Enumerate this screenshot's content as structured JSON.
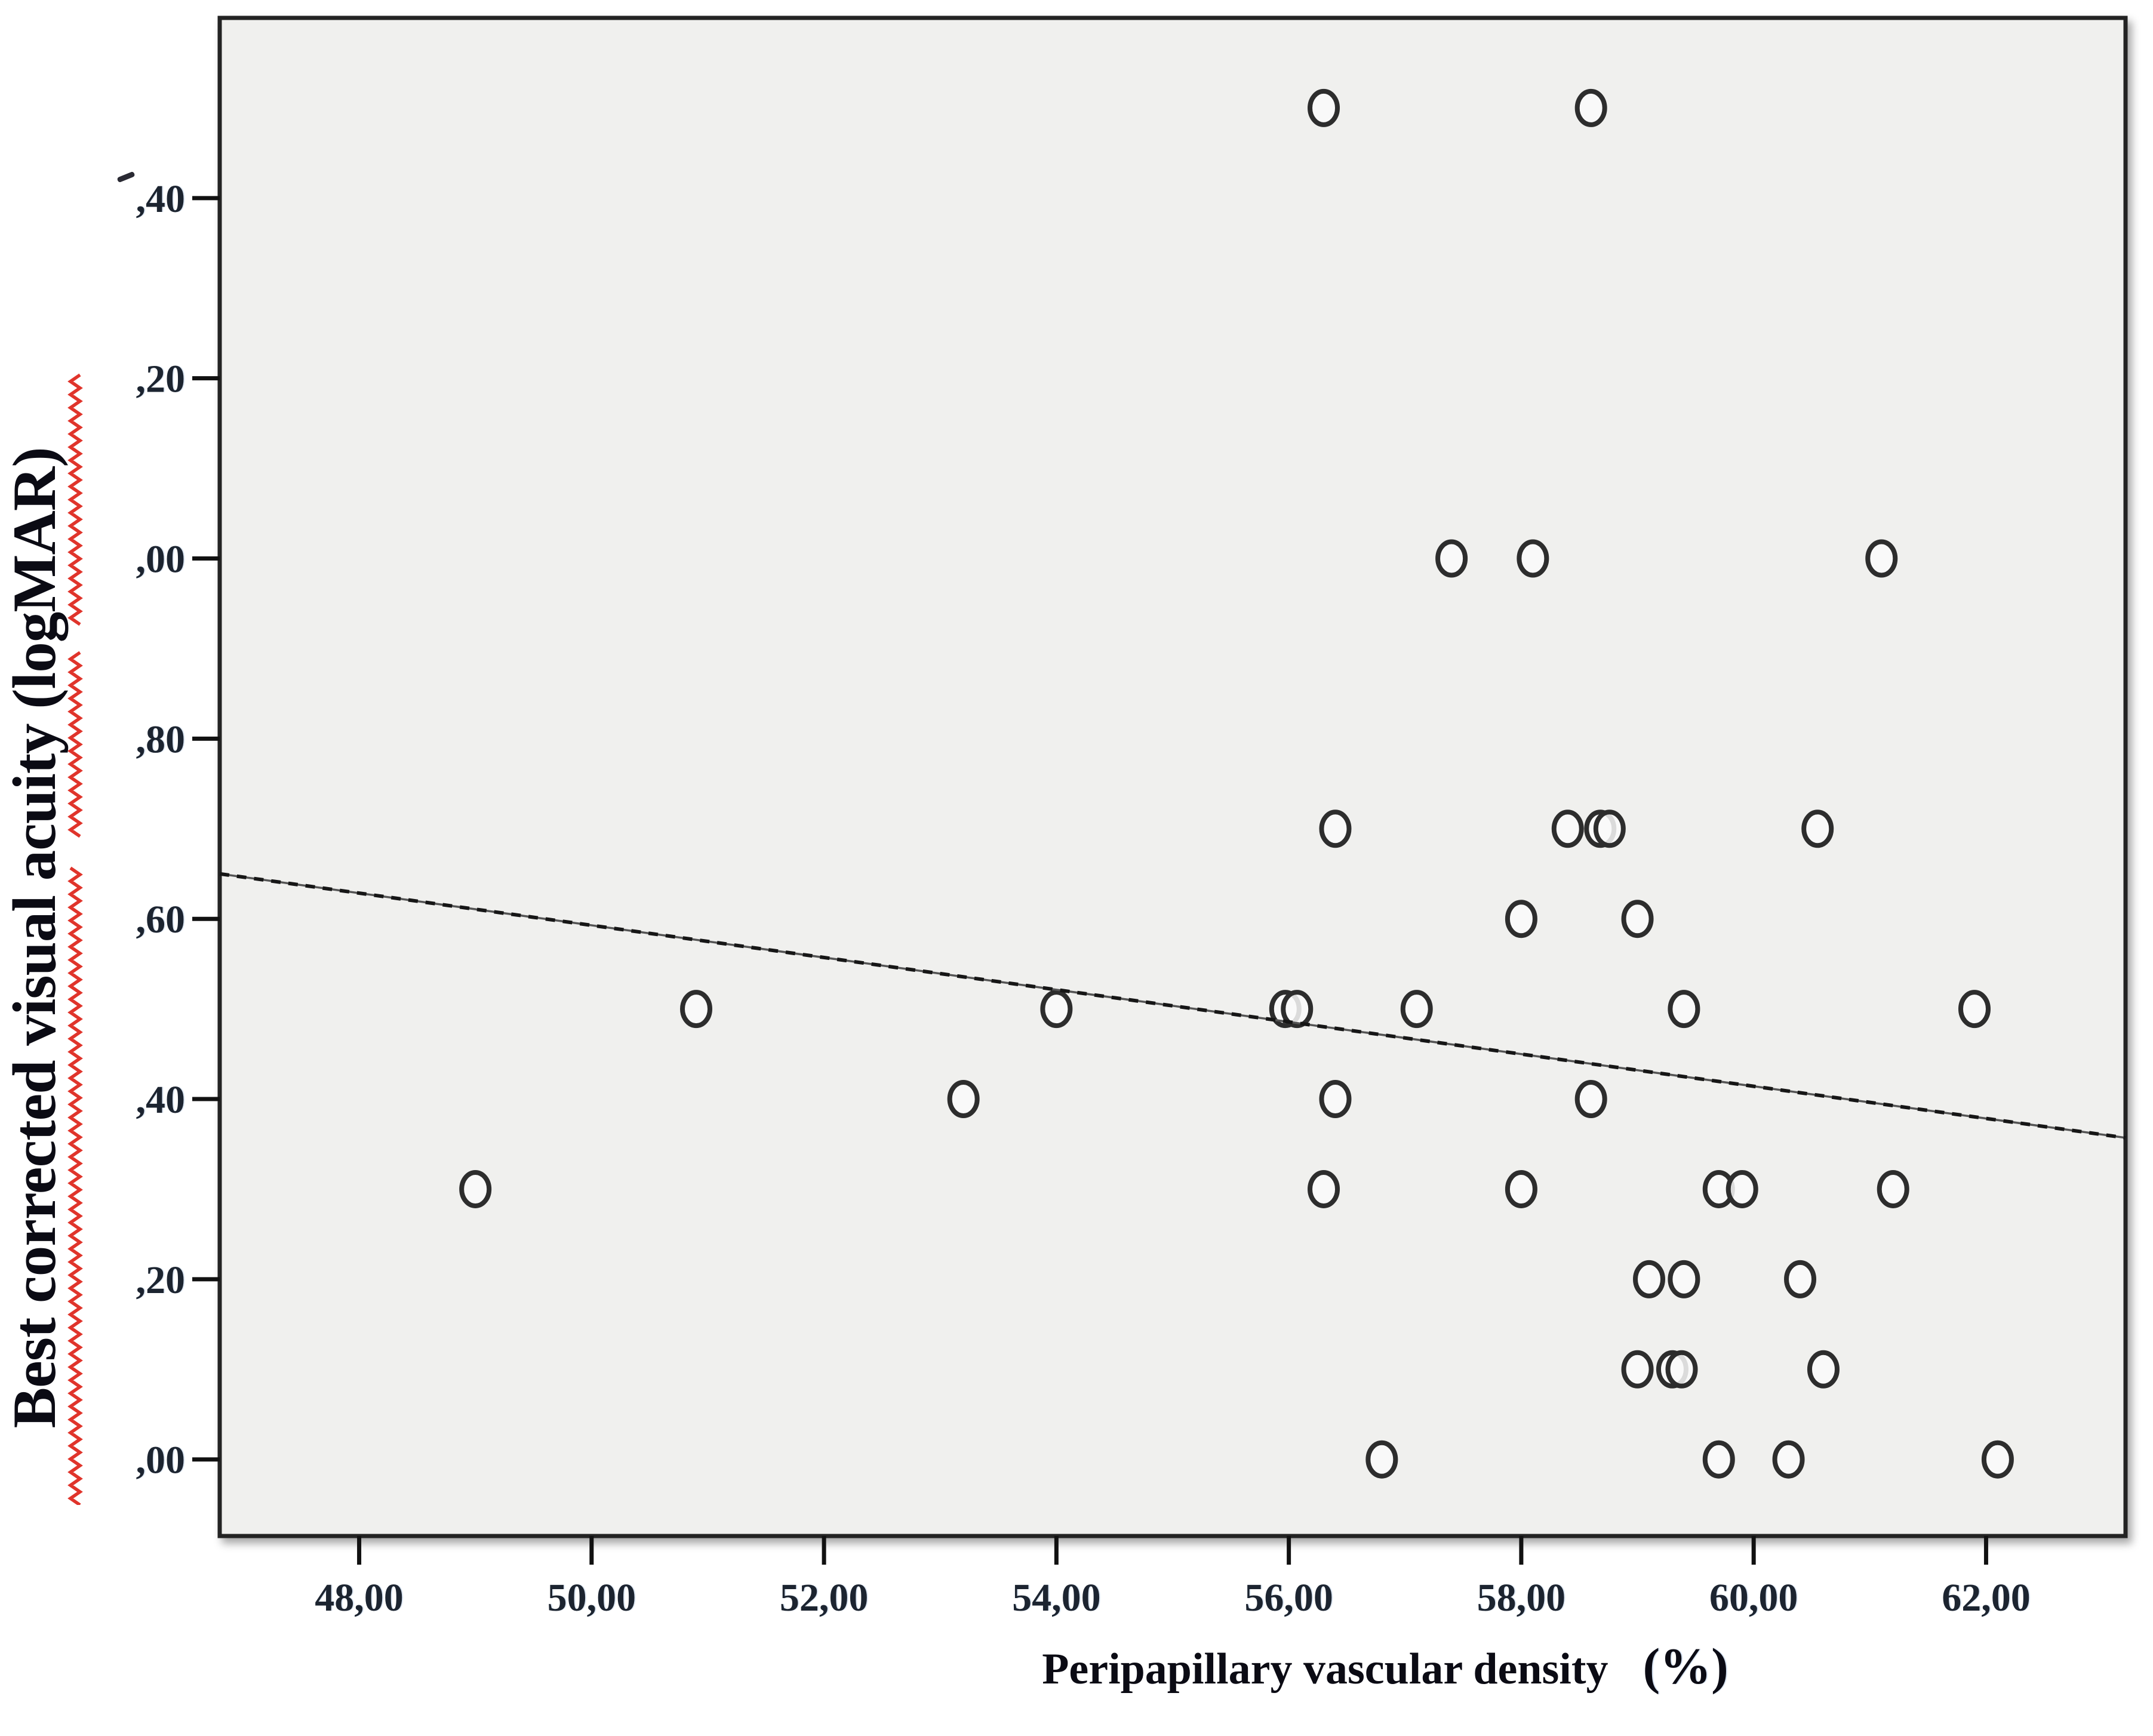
{
  "figure": {
    "y_title": "Best corrected visual acuity (logMAR)",
    "x_title": "Peripapillary vascular density",
    "x_title_unit": "(%)"
  },
  "colors": {
    "plot_bg": "#f0f0ee",
    "frame": "#232323",
    "tick": "#111111",
    "tick_label": "#1c2430",
    "marker_stroke": "#2d2d2d",
    "marker_fill": "rgba(250,250,250,0.85)",
    "fit_line_dark": "#161616",
    "fit_line_gray": "#555555",
    "squiggle_red": "#e0342b"
  },
  "chart_data": {
    "type": "scatter",
    "title": "",
    "xlabel": "Peripapillary vascular density (%)",
    "ylabel": "Best corrected visual acuity (logMAR)",
    "xlim": [
      46.8,
      63.2
    ],
    "ylim": [
      -0.085,
      1.6
    ],
    "grid": false,
    "legend": null,
    "marker": "open-circle",
    "decimal_separator": "comma",
    "x_ticks": [
      48,
      50,
      52,
      54,
      56,
      58,
      60,
      62
    ],
    "x_tick_labels": [
      "48,00",
      "50,00",
      "52,00",
      "54,00",
      "56,00",
      "58,00",
      "60,00",
      "62,00"
    ],
    "y_ticks": [
      1.4,
      1.2,
      1.0,
      0.8,
      0.6,
      0.4,
      0.2,
      0.0
    ],
    "y_tick_labels": [
      ",40",
      ",20",
      ",00",
      ",80",
      ",60",
      ",40",
      ",20",
      ",00"
    ],
    "points": [
      [
        56.3,
        1.5
      ],
      [
        58.6,
        1.5
      ],
      [
        57.4,
        1.0
      ],
      [
        58.1,
        1.0
      ],
      [
        61.1,
        1.0
      ],
      [
        56.4,
        0.7
      ],
      [
        58.4,
        0.7
      ],
      [
        58.68,
        0.7
      ],
      [
        58.76,
        0.7
      ],
      [
        60.55,
        0.7
      ],
      [
        58.0,
        0.6
      ],
      [
        59.0,
        0.6
      ],
      [
        50.9,
        0.5
      ],
      [
        54.0,
        0.5
      ],
      [
        55.97,
        0.5
      ],
      [
        56.07,
        0.5
      ],
      [
        57.1,
        0.5
      ],
      [
        59.4,
        0.5
      ],
      [
        61.9,
        0.5
      ],
      [
        53.2,
        0.4
      ],
      [
        56.4,
        0.4
      ],
      [
        58.6,
        0.4
      ],
      [
        49.0,
        0.3
      ],
      [
        56.3,
        0.3
      ],
      [
        58.0,
        0.3
      ],
      [
        59.7,
        0.3
      ],
      [
        59.9,
        0.3
      ],
      [
        61.2,
        0.3
      ],
      [
        59.1,
        0.2
      ],
      [
        59.4,
        0.2
      ],
      [
        60.4,
        0.2
      ],
      [
        59.0,
        0.1
      ],
      [
        59.3,
        0.1
      ],
      [
        59.38,
        0.1
      ],
      [
        60.6,
        0.1
      ],
      [
        56.8,
        0.0
      ],
      [
        59.7,
        0.0
      ],
      [
        60.3,
        0.0
      ],
      [
        62.1,
        0.0
      ]
    ],
    "fit_line": {
      "x1": 46.8,
      "y1": 0.65,
      "x2": 63.2,
      "y2": 0.357
    }
  }
}
